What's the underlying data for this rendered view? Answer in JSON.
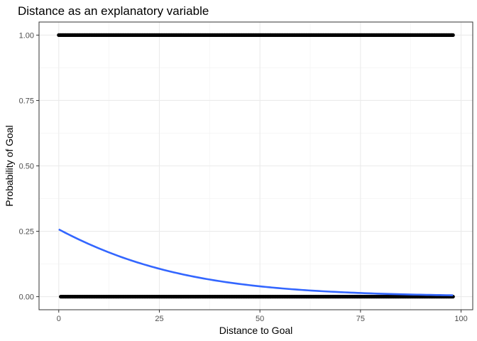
{
  "chart_data": {
    "type": "scatter",
    "title": "Distance as an explanatory variable",
    "xlabel": "Distance to Goal",
    "ylabel": "Probability of Goal",
    "xlim": [
      -4.9,
      102.9
    ],
    "ylim": [
      -0.05,
      1.05
    ],
    "x_ticks": [
      0,
      25,
      50,
      75,
      100
    ],
    "x_tick_labels": [
      "0",
      "25",
      "50",
      "75",
      "100"
    ],
    "y_ticks": [
      0,
      0.25,
      0.5,
      0.75,
      1
    ],
    "y_tick_labels": [
      "0.00",
      "0.25",
      "0.50",
      "0.75",
      "1.00"
    ],
    "grid": true,
    "points": {
      "color": "#000000",
      "outcome_1_x_range": [
        0,
        98
      ],
      "outcome_0_x_range": [
        0.5,
        98
      ]
    },
    "fit_line": {
      "color": "#3366ff",
      "x_range": [
        0,
        98
      ],
      "intercept": -1.06,
      "slope": -0.0426
    }
  }
}
